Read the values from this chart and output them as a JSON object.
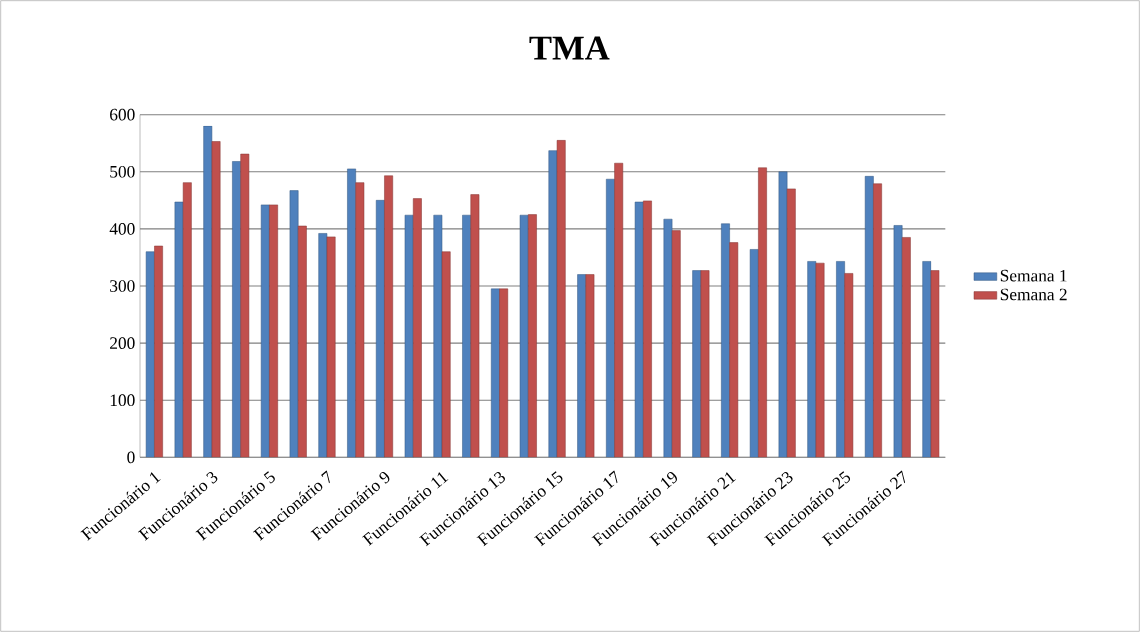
{
  "chart_data": {
    "type": "bar",
    "title": "TMA",
    "categories": [
      "Funcionário 1",
      null,
      "Funcionário 3",
      null,
      "Funcionário 5",
      null,
      "Funcionário 7",
      null,
      "Funcionário 9",
      null,
      "Funcionário 11",
      null,
      "Funcionário 13",
      null,
      "Funcionário 15",
      null,
      "Funcionário 17",
      null,
      "Funcionário 19",
      null,
      "Funcionário 21",
      null,
      "Funcionário 23",
      null,
      "Funcionário 25",
      null,
      "Funcionário 27",
      null
    ],
    "series": [
      {
        "name": "Semana 1",
        "color": "#4f81bd",
        "values": [
          360,
          447,
          580,
          518,
          442,
          467,
          392,
          505,
          450,
          424,
          424,
          424,
          295,
          424,
          537,
          320,
          487,
          447,
          417,
          327,
          409,
          364,
          500,
          343,
          343,
          492,
          406,
          343
        ]
      },
      {
        "name": "Semana 2",
        "color": "#c0504d",
        "values": [
          370,
          481,
          553,
          531,
          442,
          405,
          386,
          481,
          493,
          453,
          360,
          460,
          295,
          425,
          555,
          320,
          515,
          449,
          397,
          327,
          376,
          507,
          470,
          340,
          322,
          479,
          385,
          327
        ]
      }
    ],
    "ylim": [
      0,
      600
    ],
    "yticks": [
      0,
      100,
      200,
      300,
      400,
      500,
      600
    ],
    "grid": "y",
    "legend": "right"
  }
}
